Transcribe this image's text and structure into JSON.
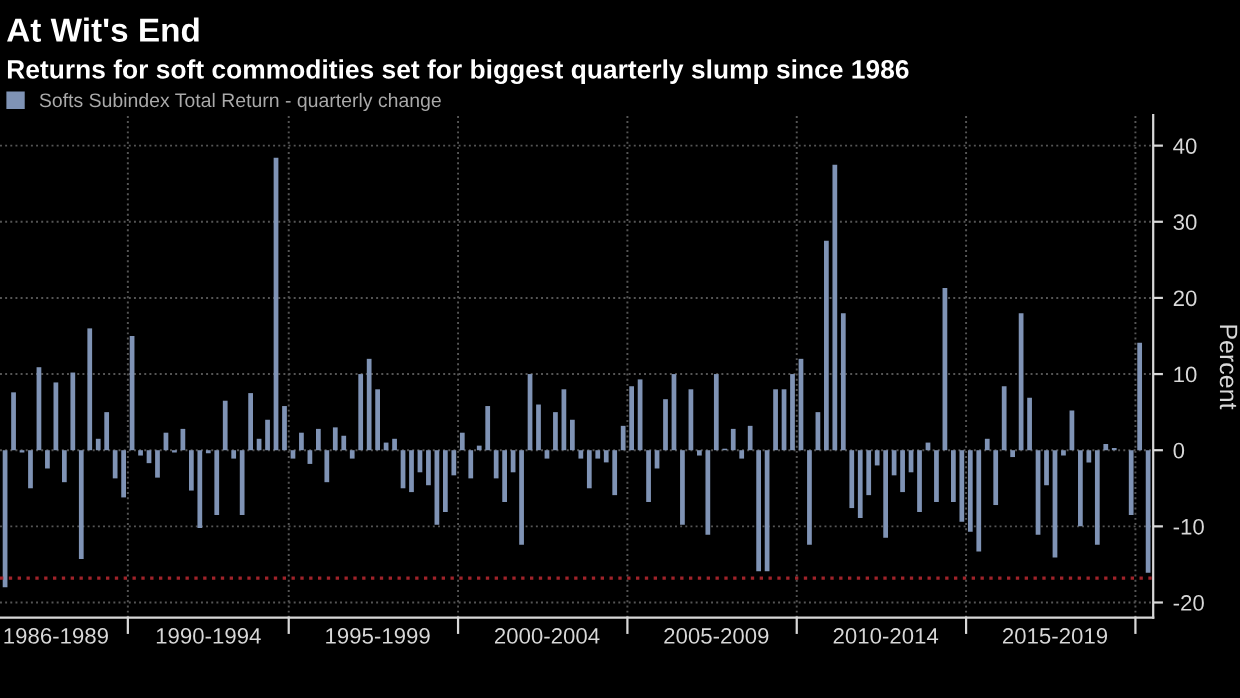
{
  "chart_data": {
    "type": "bar",
    "title": "At Wit's End",
    "subtitle": "Returns for soft commodities set for biggest quarterly slump since 1986",
    "ylabel": "Percent",
    "categories": [
      null,
      null,
      null,
      null,
      null,
      null,
      "1986-1989",
      null,
      null,
      null,
      null,
      null,
      null,
      null,
      null,
      null,
      null,
      null,
      null,
      null,
      null,
      null,
      null,
      null,
      "1990-1994",
      null,
      null,
      null,
      null,
      null,
      null,
      null,
      null,
      null,
      null,
      null,
      null,
      null,
      null,
      null,
      null,
      null,
      null,
      null,
      "1995-1999",
      null,
      null,
      null,
      null,
      null,
      null,
      null,
      null,
      null,
      null,
      null,
      null,
      null,
      null,
      null,
      null,
      null,
      null,
      null,
      "2000-2004",
      null,
      null,
      null,
      null,
      null,
      null,
      null,
      null,
      null,
      null,
      null,
      null,
      null,
      null,
      null,
      null,
      null,
      null,
      null,
      "2005-2009",
      null,
      null,
      null,
      null,
      null,
      null,
      null,
      null,
      null,
      null,
      null,
      null,
      null,
      null,
      null,
      null,
      null,
      null,
      null,
      "2010-2014",
      null,
      null,
      null,
      null,
      null,
      null,
      null,
      null,
      null,
      null,
      null,
      null,
      null,
      null,
      null,
      null,
      null,
      null,
      null,
      "2015-2019",
      null,
      null,
      null,
      null,
      null,
      null,
      null,
      null,
      null,
      null,
      null
    ],
    "series": [
      {
        "name": "Softs Subindex Total Return - quarterly change",
        "color": "#7f93b5",
        "values": [
          -18,
          7.6,
          -0.3,
          -5,
          10.9,
          -2.4,
          8.9,
          -4.2,
          10.2,
          -14.3,
          16,
          1.5,
          5,
          -3.7,
          -6.2,
          15,
          -0.7,
          -1.7,
          -3.6,
          2.3,
          -0.3,
          2.8,
          -5.3,
          -10.2,
          -0.4,
          -8.5,
          6.5,
          -1.1,
          -8.5,
          7.5,
          1.5,
          4,
          38.4,
          5.8,
          -1.1,
          2.3,
          -1.8,
          2.8,
          -4.2,
          3,
          1.9,
          -1.1,
          10,
          12,
          8,
          1,
          1.5,
          -5,
          -5.5,
          -2.9,
          -4.6,
          -9.8,
          -8.1,
          -3.3,
          2.3,
          -3.7,
          0.6,
          5.8,
          -3.7,
          -6.8,
          -2.9,
          -12.4,
          10,
          6,
          -1.1,
          5,
          8,
          4,
          -1.1,
          -5,
          -1.1,
          -1.6,
          -5.9,
          3.2,
          8.4,
          9.3,
          -6.8,
          -2.4,
          6.7,
          10,
          -9.8,
          8,
          -0.7,
          -11.1,
          10,
          0.2,
          2.8,
          -1.1,
          3.2,
          -15.9,
          -15.9,
          8,
          8,
          10,
          12,
          -12.4,
          5,
          27.5,
          37.5,
          18,
          -7.6,
          -8.9,
          -5.9,
          -2,
          -11.5,
          -3.3,
          -5.5,
          -2.9,
          -8.1,
          1,
          -6.8,
          21.3,
          -6.8,
          -9.4,
          -10.7,
          -13.3,
          1.5,
          -7.2,
          8.4,
          -0.9,
          18,
          6.9,
          -11.1,
          -4.6,
          -14.1,
          -0.7,
          5.2,
          -10,
          -1.6,
          -12.4,
          0.8,
          0.3,
          null,
          -8.5,
          14.1,
          -16.1
        ]
      }
    ],
    "ylim": [
      -22,
      44
    ],
    "yticks": [
      -20,
      -10,
      0,
      10,
      20,
      30,
      40
    ],
    "ref_lines": [
      {
        "axis": "y",
        "value": -16.8,
        "color": "#a0232a",
        "line_style": "dotted"
      }
    ],
    "grid": true,
    "legend": "top left"
  }
}
